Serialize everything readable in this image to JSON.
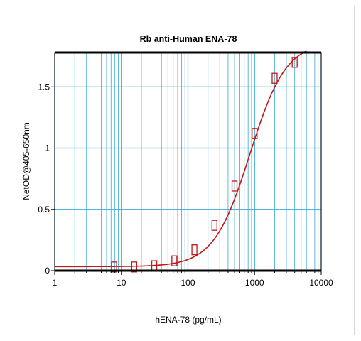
{
  "chart_data": {
    "type": "scatter",
    "title": "Rb anti-Human ENA-78",
    "xlabel": "hENA-78 (pg/mL)",
    "ylabel": "NetOD@405-650nm",
    "x_scale": "log",
    "xlim": [
      1,
      10000
    ],
    "ylim": [
      0,
      1.78
    ],
    "x_ticks": [
      1,
      10,
      100,
      1000,
      10000
    ],
    "x_tick_labels": [
      "1",
      "10",
      "100",
      "1000",
      "10000"
    ],
    "y_ticks": [
      0,
      0.5,
      1,
      1.5
    ],
    "y_tick_labels": [
      "0",
      "0.5",
      "1",
      "1.5"
    ],
    "grid": true,
    "colors": {
      "grid": "#39a9d6",
      "fit": "#c01818",
      "points": "#c01818",
      "frame": "#000000"
    },
    "series": [
      {
        "points": [
          {
            "x": 7.8,
            "y": 0.03
          },
          {
            "x": 15.6,
            "y": 0.03
          },
          {
            "x": 31.2,
            "y": 0.04
          },
          {
            "x": 62.5,
            "y": 0.08
          },
          {
            "x": 125,
            "y": 0.17
          },
          {
            "x": 250,
            "y": 0.37
          },
          {
            "x": 500,
            "y": 0.69
          },
          {
            "x": 1000,
            "y": 1.12
          },
          {
            "x": 2000,
            "y": 1.57
          },
          {
            "x": 4000,
            "y": 1.7
          }
        ]
      }
    ],
    "fit": {
      "model": "4PL",
      "bottom": 0.033,
      "top": 1.87,
      "ec50": 850,
      "hill": 1.6,
      "x_range": [
        1,
        6000
      ]
    }
  }
}
